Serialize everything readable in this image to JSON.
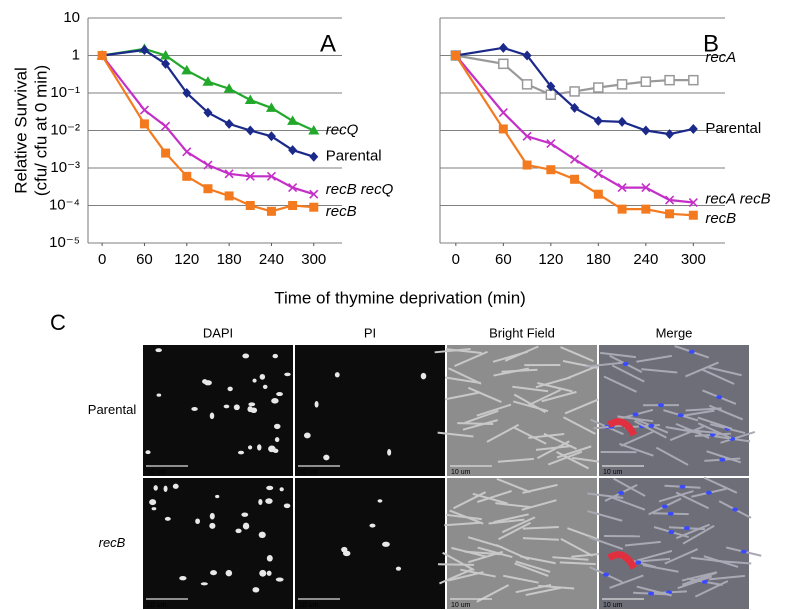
{
  "chart_data": [
    {
      "type": "line",
      "title": "A",
      "log_y": true,
      "grid": true,
      "ylabel": [
        "Relative Survival",
        "(cfu/ cfu at 0 min)"
      ],
      "x": [
        0,
        60,
        90,
        120,
        150,
        180,
        210,
        240,
        270,
        300
      ],
      "xlim": [
        -20,
        340
      ],
      "xticks": [
        0,
        60,
        120,
        180,
        240,
        300
      ],
      "ylim": [
        1e-05,
        10
      ],
      "yticks": [
        {
          "value": 1e-05,
          "label": "10⁻⁵"
        },
        {
          "value": 0.0001,
          "label": "10⁻⁴"
        },
        {
          "value": 0.001,
          "label": "10⁻³"
        },
        {
          "value": 0.01,
          "label": "10⁻²"
        },
        {
          "value": 0.1,
          "label": "10⁻¹"
        },
        1,
        10
      ],
      "series": [
        {
          "name": "recQ",
          "italic": true,
          "color": "#22a82a",
          "marker": "triangle",
          "values": [
            1,
            1.5,
            1.0,
            0.4,
            0.2,
            0.13,
            0.065,
            0.04,
            0.018,
            0.01
          ]
        },
        {
          "name": "Parental",
          "italic": false,
          "color": "#1b2a8a",
          "marker": "diamond",
          "values": [
            1,
            1.4,
            0.6,
            0.1,
            0.03,
            0.015,
            0.01,
            0.007,
            0.003,
            0.002
          ]
        },
        {
          "name": "recB recQ",
          "italic": true,
          "color": "#c42fc8",
          "marker": "cross",
          "values": [
            1,
            0.035,
            0.013,
            0.0027,
            0.0012,
            0.0007,
            0.0006,
            0.0006,
            0.0003,
            0.0002
          ]
        },
        {
          "name": "recB",
          "italic": true,
          "color": "#f47a1f",
          "marker": "square",
          "values": [
            1,
            0.015,
            0.0025,
            0.0006,
            0.00028,
            0.00018,
            0.0001,
            7e-05,
            0.0001,
            9e-05
          ]
        }
      ]
    },
    {
      "type": "line",
      "title": "B",
      "log_y": true,
      "grid": true,
      "x": [
        0,
        60,
        90,
        120,
        150,
        180,
        210,
        240,
        270,
        300
      ],
      "xlim": [
        -20,
        340
      ],
      "xticks": [
        0,
        60,
        120,
        180,
        240,
        300
      ],
      "ylim": [
        1e-05,
        10
      ],
      "yticks": [
        1e-05,
        0.0001,
        0.001,
        0.01,
        0.1,
        1,
        10
      ],
      "series": [
        {
          "name": "recA",
          "italic": true,
          "color": "#999999",
          "marker": "open-square",
          "values": [
            1,
            0.6,
            0.17,
            0.09,
            0.11,
            0.14,
            0.17,
            0.2,
            0.22,
            0.22
          ]
        },
        {
          "name": "Parental",
          "italic": false,
          "color": "#1b2a8a",
          "marker": "diamond",
          "values": [
            1,
            1.6,
            1.0,
            0.15,
            0.04,
            0.018,
            0.017,
            0.01,
            0.008,
            0.011
          ]
        },
        {
          "name": "recA recB",
          "italic": true,
          "color": "#c42fc8",
          "marker": "cross",
          "values": [
            1,
            0.03,
            0.007,
            0.0045,
            0.0017,
            0.0007,
            0.0003,
            0.0003,
            0.00014,
            0.00012
          ]
        },
        {
          "name": "recB",
          "italic": true,
          "color": "#f47a1f",
          "marker": "square",
          "values": [
            1,
            0.011,
            0.0012,
            0.0009,
            0.0005,
            0.0002,
            8e-05,
            8e-05,
            6e-05,
            5.5e-05
          ]
        }
      ]
    }
  ],
  "xlabel": "Time of thymine deprivation (min)",
  "panel_c": {
    "letter": "C",
    "columns": [
      "DAPI",
      "PI",
      "Bright Field",
      "Merge"
    ],
    "rows": [
      "Parental",
      "recB"
    ],
    "scale_bar": "10 um"
  }
}
